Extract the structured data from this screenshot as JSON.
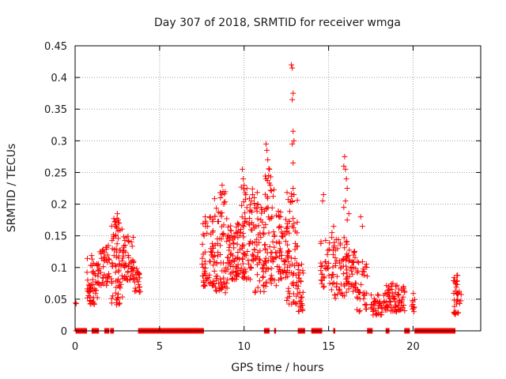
{
  "chart_data": {
    "type": "scatter",
    "title": "Day 307 of 2018, SRMTID for receiver wmga",
    "xlabel": "GPS time / hours",
    "ylabel": "SRMTID / TECUs",
    "xlim": [
      0,
      24
    ],
    "ylim": [
      0,
      0.45
    ],
    "xticks": [
      0,
      5,
      10,
      15,
      20
    ],
    "xtick_labels": [
      "0",
      "5",
      "10",
      "15",
      "20"
    ],
    "yticks": [
      0,
      0.05,
      0.1,
      0.15,
      0.2,
      0.25,
      0.3,
      0.35,
      0.4,
      0.45
    ],
    "ytick_labels": [
      "0",
      "0.05",
      "0.1",
      "0.15",
      "0.2",
      "0.25",
      "0.3",
      "0.35",
      "0.4",
      "0.45"
    ],
    "grid": true,
    "marker": "+",
    "color": "#ff0000",
    "seed": 307,
    "zero_intervals": [
      [
        0.05,
        0.7
      ],
      [
        1.0,
        1.4
      ],
      [
        1.75,
        2.0
      ],
      [
        2.1,
        2.3
      ],
      [
        3.75,
        7.6
      ],
      [
        11.2,
        11.5
      ],
      [
        11.8,
        11.9
      ],
      [
        13.2,
        13.6
      ],
      [
        14.0,
        14.6
      ],
      [
        15.3,
        15.4
      ],
      [
        17.3,
        17.6
      ],
      [
        18.4,
        18.6
      ],
      [
        19.5,
        19.8
      ],
      [
        20.1,
        22.5
      ]
    ],
    "clusters": [
      {
        "x0": -0.05,
        "x1": 0.1,
        "n": 2,
        "ymin": 0.04,
        "ymax": 0.047
      },
      {
        "x0": 0.7,
        "x1": 1.4,
        "n": 55,
        "ymin": 0.04,
        "ymax": 0.12
      },
      {
        "x0": 1.35,
        "x1": 2.05,
        "n": 45,
        "ymin": 0.07,
        "ymax": 0.14
      },
      {
        "x0": 2.1,
        "x1": 2.8,
        "n": 70,
        "ymin": 0.04,
        "ymax": 0.18
      },
      {
        "x0": 2.8,
        "x1": 3.5,
        "n": 55,
        "ymin": 0.08,
        "ymax": 0.15
      },
      {
        "x0": 3.5,
        "x1": 3.85,
        "n": 22,
        "ymin": 0.06,
        "ymax": 0.1
      },
      {
        "x0": 7.5,
        "x1": 8.2,
        "n": 60,
        "ymin": 0.07,
        "ymax": 0.18
      },
      {
        "x0": 8.2,
        "x1": 9.0,
        "n": 70,
        "ymin": 0.06,
        "ymax": 0.22
      },
      {
        "x0": 9.0,
        "x1": 9.8,
        "n": 75,
        "ymin": 0.08,
        "ymax": 0.17
      },
      {
        "x0": 9.8,
        "x1": 10.6,
        "n": 75,
        "ymin": 0.08,
        "ymax": 0.23
      },
      {
        "x0": 10.6,
        "x1": 11.3,
        "n": 60,
        "ymin": 0.06,
        "ymax": 0.22
      },
      {
        "x0": 11.2,
        "x1": 11.9,
        "n": 55,
        "ymin": 0.07,
        "ymax": 0.26
      },
      {
        "x0": 11.9,
        "x1": 12.6,
        "n": 55,
        "ymin": 0.08,
        "ymax": 0.2
      },
      {
        "x0": 12.5,
        "x1": 13.2,
        "n": 65,
        "ymin": 0.04,
        "ymax": 0.22
      },
      {
        "x0": 13.2,
        "x1": 13.5,
        "n": 30,
        "ymin": 0.03,
        "ymax": 0.11
      },
      {
        "x0": 14.5,
        "x1": 15.3,
        "n": 40,
        "ymin": 0.06,
        "ymax": 0.15
      },
      {
        "x0": 15.3,
        "x1": 16.1,
        "n": 50,
        "ymin": 0.05,
        "ymax": 0.15
      },
      {
        "x0": 16.0,
        "x1": 16.6,
        "n": 40,
        "ymin": 0.06,
        "ymax": 0.13
      },
      {
        "x0": 16.6,
        "x1": 17.3,
        "n": 40,
        "ymin": 0.03,
        "ymax": 0.11
      },
      {
        "x0": 17.5,
        "x1": 18.5,
        "n": 45,
        "ymin": 0.025,
        "ymax": 0.06
      },
      {
        "x0": 18.4,
        "x1": 19.5,
        "n": 70,
        "ymin": 0.03,
        "ymax": 0.075
      },
      {
        "x0": 19.9,
        "x1": 20.1,
        "n": 12,
        "ymin": 0.03,
        "ymax": 0.06
      },
      {
        "x0": 22.4,
        "x1": 22.85,
        "n": 35,
        "ymin": 0.025,
        "ymax": 0.09
      }
    ],
    "highlights": [
      [
        2.5,
        0.185
      ],
      [
        2.55,
        0.175
      ],
      [
        2.6,
        0.17
      ],
      [
        2.4,
        0.165
      ],
      [
        7.7,
        0.18
      ],
      [
        8.0,
        0.18
      ],
      [
        8.7,
        0.23
      ],
      [
        8.75,
        0.22
      ],
      [
        8.8,
        0.2
      ],
      [
        8.6,
        0.21
      ],
      [
        9.9,
        0.255
      ],
      [
        9.95,
        0.24
      ],
      [
        10.0,
        0.23
      ],
      [
        10.1,
        0.215
      ],
      [
        10.5,
        0.215
      ],
      [
        10.6,
        0.21
      ],
      [
        10.8,
        0.2
      ],
      [
        11.3,
        0.295
      ],
      [
        11.35,
        0.285
      ],
      [
        11.4,
        0.27
      ],
      [
        11.5,
        0.255
      ],
      [
        11.45,
        0.245
      ],
      [
        11.3,
        0.24
      ],
      [
        11.55,
        0.23
      ],
      [
        12.8,
        0.42
      ],
      [
        12.85,
        0.415
      ],
      [
        12.9,
        0.375
      ],
      [
        12.85,
        0.365
      ],
      [
        12.9,
        0.315
      ],
      [
        12.95,
        0.3
      ],
      [
        12.85,
        0.295
      ],
      [
        12.9,
        0.265
      ],
      [
        12.9,
        0.225
      ],
      [
        12.95,
        0.215
      ],
      [
        12.85,
        0.205
      ],
      [
        15.95,
        0.275
      ],
      [
        15.9,
        0.26
      ],
      [
        16.0,
        0.255
      ],
      [
        16.05,
        0.24
      ],
      [
        16.1,
        0.225
      ],
      [
        16.0,
        0.205
      ],
      [
        15.9,
        0.195
      ],
      [
        16.2,
        0.185
      ],
      [
        16.1,
        0.175
      ],
      [
        14.7,
        0.215
      ],
      [
        14.65,
        0.205
      ],
      [
        15.3,
        0.165
      ],
      [
        15.2,
        0.155
      ],
      [
        16.9,
        0.18
      ],
      [
        17.0,
        0.165
      ]
    ]
  }
}
